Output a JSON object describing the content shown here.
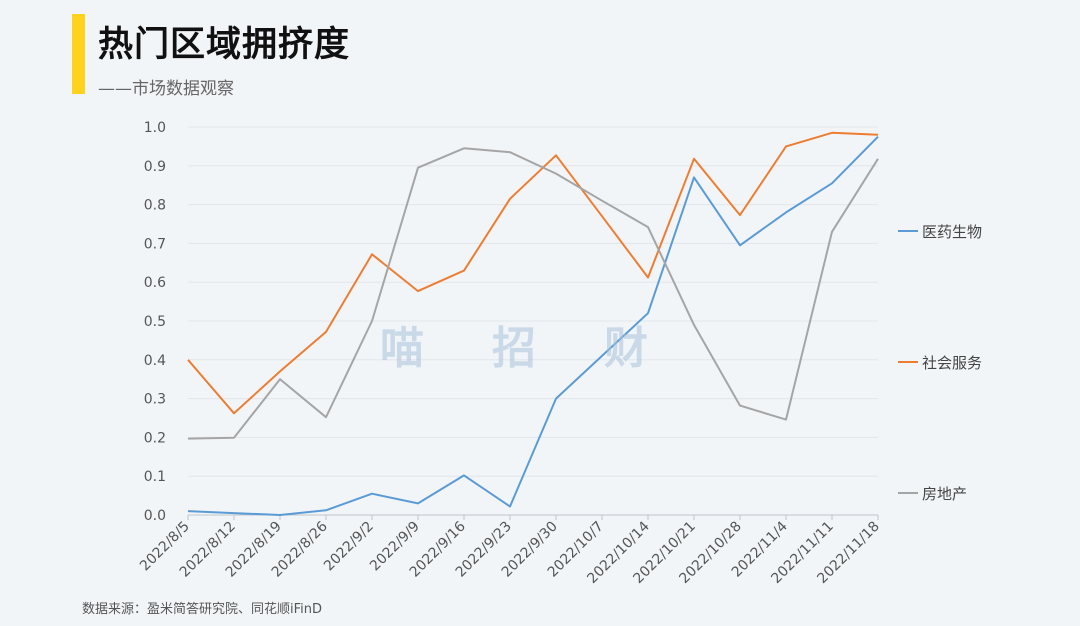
{
  "header": {
    "title": "热门区域拥挤度",
    "subtitle": "——市场数据观察"
  },
  "watermark": "喵招财",
  "source": "数据来源：盈米简答研究院、同花顺iFinD",
  "colors": {
    "accent": "#ffd21e",
    "grid": "#e2e6ea"
  },
  "chart_data": {
    "type": "line",
    "title": "热门区域拥挤度",
    "x": [
      "2022/8/5",
      "2022/8/12",
      "2022/8/19",
      "2022/8/26",
      "2022/9/2",
      "2022/9/9",
      "2022/9/16",
      "2022/9/23",
      "2022/9/30",
      "2022/10/7",
      "2022/10/14",
      "2022/10/21",
      "2022/10/28",
      "2022/11/4",
      "2022/11/11",
      "2022/11/18"
    ],
    "yticks": [
      "0.0",
      "0.1",
      "0.2",
      "0.3",
      "0.4",
      "0.5",
      "0.6",
      "0.7",
      "0.8",
      "0.9",
      "1.0"
    ],
    "ylim": [
      0,
      1
    ],
    "grid": true,
    "legend": "right",
    "series": [
      {
        "name": "医药生物",
        "color": "#5b9bd5",
        "values": [
          0.01,
          0.005,
          0.0,
          0.012,
          0.055,
          0.03,
          0.102,
          0.022,
          0.3,
          0.41,
          0.52,
          0.87,
          0.695,
          0.78,
          0.855,
          0.975
        ]
      },
      {
        "name": "社会服务",
        "color": "#ed7d31",
        "values": [
          0.4,
          0.262,
          0.37,
          0.472,
          0.672,
          0.577,
          0.63,
          0.815,
          0.927,
          0.77,
          0.612,
          0.918,
          0.773,
          0.95,
          0.985,
          0.98
        ]
      },
      {
        "name": "房地产",
        "color": "#a5a5a5",
        "values": [
          0.197,
          0.199,
          0.35,
          0.252,
          0.5,
          0.895,
          0.945,
          0.935,
          0.88,
          0.81,
          0.742,
          0.49,
          0.282,
          0.246,
          0.73,
          0.918
        ]
      }
    ]
  }
}
